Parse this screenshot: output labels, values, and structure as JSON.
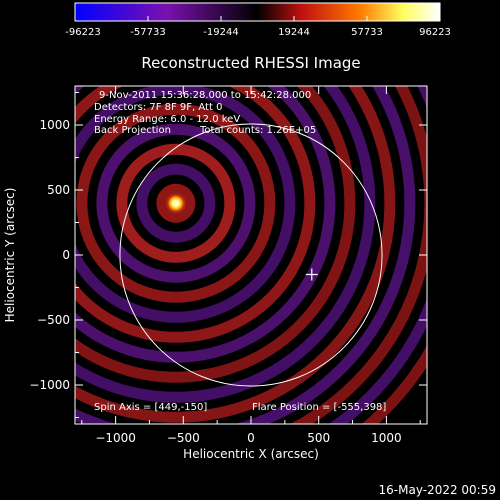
{
  "chart_data": {
    "type": "heatmap",
    "title": "Reconstructed RHESSI Image",
    "xlabel": "Heliocentric X (arcsec)",
    "ylabel": "Heliocentric Y (arcsec)",
    "xlim": [
      -1300,
      1300
    ],
    "ylim": [
      -1300,
      1300
    ],
    "xticks": [
      -1000,
      -500,
      0,
      500,
      1000
    ],
    "yticks": [
      -1000,
      -500,
      0,
      500,
      1000
    ],
    "colorbar": {
      "ticks": [
        "-96223",
        "-57733",
        "-19244",
        "19244",
        "57733",
        "96223"
      ],
      "range": [
        -96223,
        96223
      ],
      "colors": [
        "#0000ff",
        "#7a10b0",
        "#000000",
        "#c01010",
        "#ff7a00",
        "#ffff60",
        "#ffffff"
      ]
    },
    "annotations": [
      "9-Nov-2011 15:36:28.000 to 15:42:28.000",
      "Detectors: 7F 8F 9F, Att 0",
      "Energy Range: 6.0 - 12.0 keV",
      "Back Projection",
      "Total counts: 1.26E+05"
    ],
    "spin_axis": "Spin Axis = [449,-150]",
    "flare_position": "Flare Position = [-555,398]",
    "source": {
      "x": -555,
      "y": 398
    },
    "solar_disk": {
      "center": [
        0,
        0
      ],
      "radius_arcsec": 968
    },
    "cross_marker": {
      "x": 449,
      "y": -150
    }
  },
  "footer": {
    "date": "16-May-2022 00:59"
  }
}
